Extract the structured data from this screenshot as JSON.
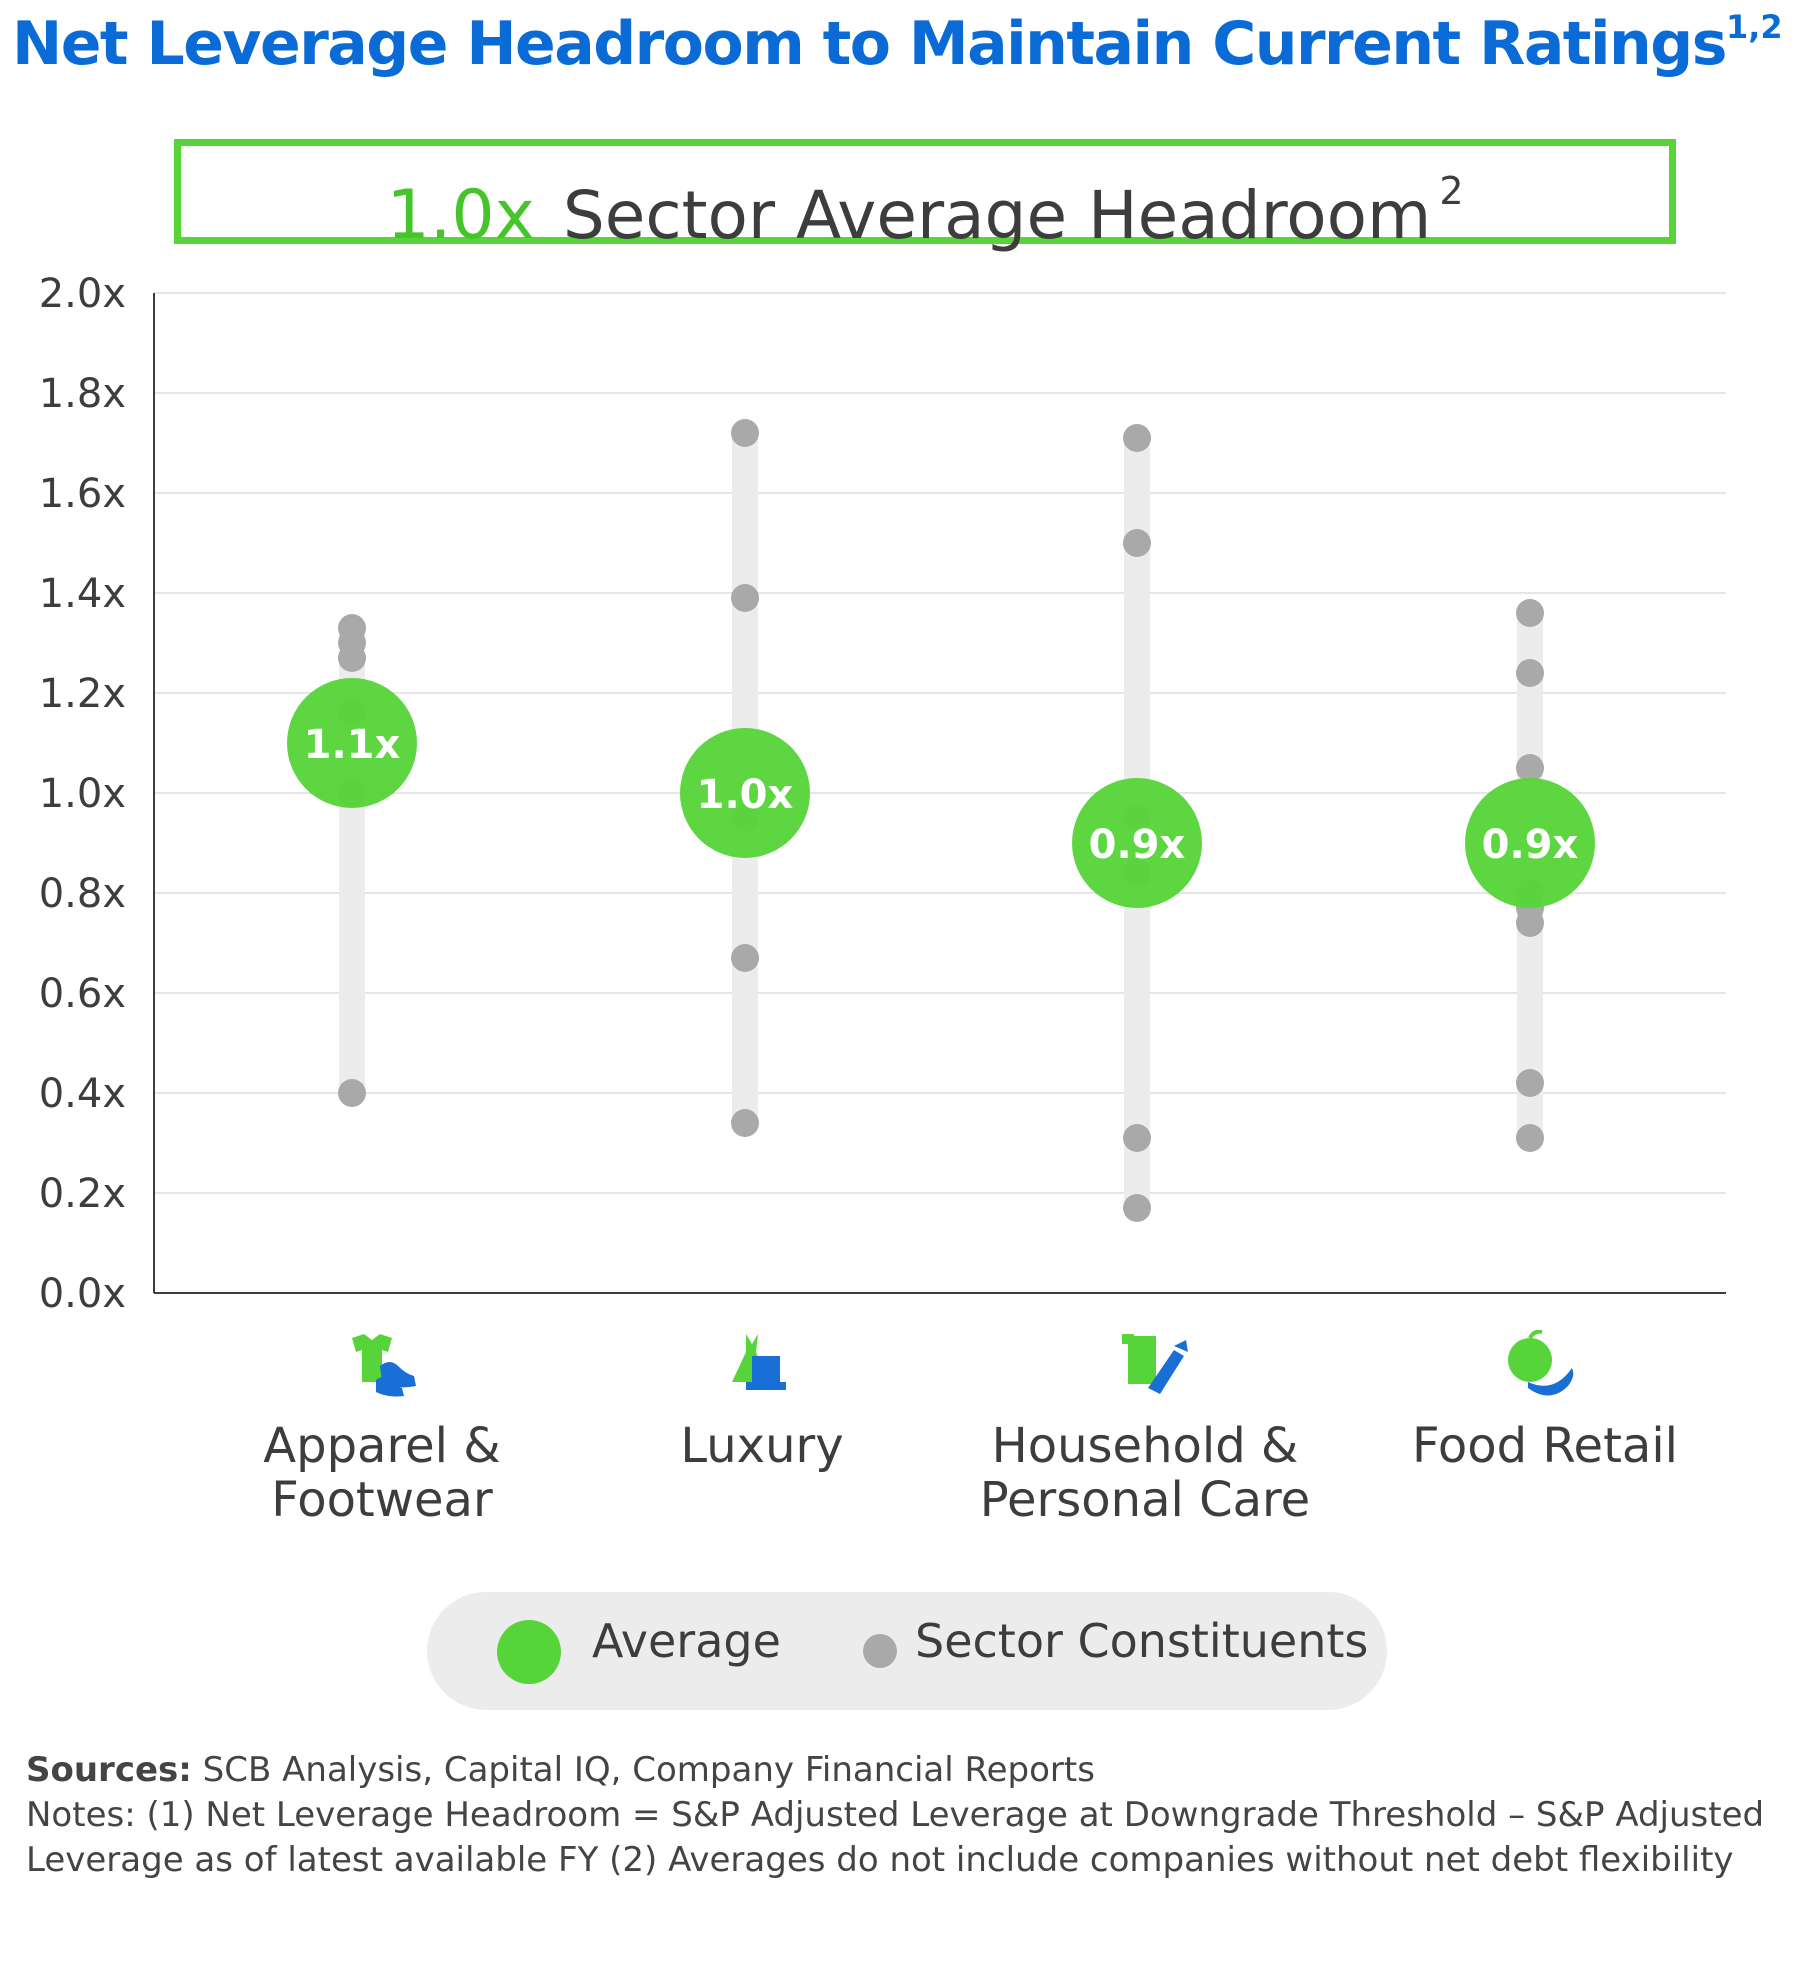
{
  "title": "Net Leverage Headroom to Maintain Current Ratings",
  "title_superscript": "1,2",
  "banner": {
    "value": "1.0x",
    "label": "Sector Average Headroom",
    "superscript": "2"
  },
  "legend": {
    "average": "Average",
    "constituents": "Sector Constituents"
  },
  "footer": {
    "sources_label": "Sources:",
    "sources_text": " SCB Analysis, Capital IQ, Company Financial Reports",
    "notes_text": "Notes: (1) Net Leverage Headroom = S&P Adjusted Leverage at Downgrade Threshold – S&P Adjusted Leverage as of latest available FY (2) Averages do not include companies without net debt flexibility"
  },
  "colors": {
    "title": "#0a6bd6",
    "average": "#57d43a",
    "constituent": "#a9a9a9",
    "range_bar": "#ececec",
    "icon_green": "#57d43a",
    "icon_blue": "#1a6fd6"
  },
  "icons": [
    "apparel-footwear-icon",
    "luxury-icon",
    "household-personal-care-icon",
    "food-retail-icon"
  ],
  "chart_data": {
    "type": "scatter",
    "categories": [
      {
        "line1": "Apparel &",
        "line2": "Footwear"
      },
      {
        "line1": "Luxury",
        "line2": ""
      },
      {
        "line1": "Household &",
        "line2": "Personal Care"
      },
      {
        "line1": "Food Retail",
        "line2": ""
      }
    ],
    "ylim": [
      0,
      2.0
    ],
    "yticks": [
      "0.0x",
      "0.2x",
      "0.4x",
      "0.6x",
      "0.8x",
      "1.0x",
      "1.2x",
      "1.4x",
      "1.6x",
      "1.8x",
      "2.0x"
    ],
    "grid": true,
    "legend_position": "bottom",
    "averages": [
      {
        "value": 1.1,
        "label": "1.1x"
      },
      {
        "value": 1.0,
        "label": "1.0x"
      },
      {
        "value": 0.9,
        "label": "0.9x"
      },
      {
        "value": 0.9,
        "label": "0.9x"
      }
    ],
    "constituents": [
      [
        1.33,
        1.3,
        1.27,
        1.16,
        1.0,
        0.4
      ],
      [
        1.72,
        1.39,
        0.95,
        0.67,
        0.34
      ],
      [
        1.71,
        1.5,
        0.95,
        0.84,
        0.31,
        0.17
      ],
      [
        1.36,
        1.24,
        1.05,
        0.8,
        0.77,
        0.74,
        0.42,
        0.31
      ]
    ]
  }
}
